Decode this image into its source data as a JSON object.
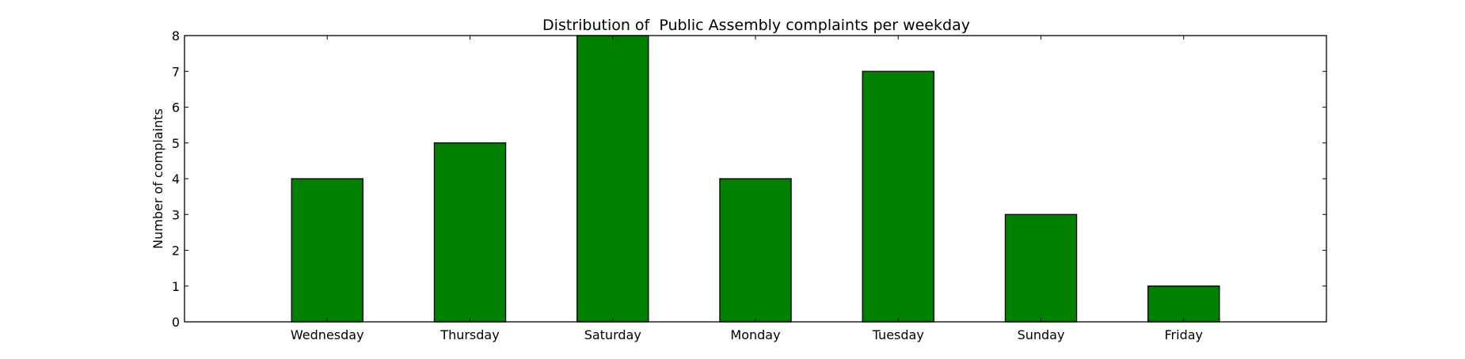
{
  "chart_data": {
    "type": "bar",
    "title": "Distribution of  Public Assembly complaints per weekday",
    "xlabel": "",
    "ylabel": "Number of complaints",
    "categories": [
      "Wednesday",
      "Thursday",
      "Saturday",
      "Monday",
      "Tuesday",
      "Sunday",
      "Friday"
    ],
    "values": [
      4,
      5,
      8,
      4,
      7,
      3,
      1
    ],
    "ylim": [
      0,
      8
    ],
    "yticks": [
      0,
      1,
      2,
      3,
      4,
      5,
      6,
      7,
      8
    ],
    "grid": false,
    "bar_color": "#008000",
    "edge_color": "#000000"
  }
}
